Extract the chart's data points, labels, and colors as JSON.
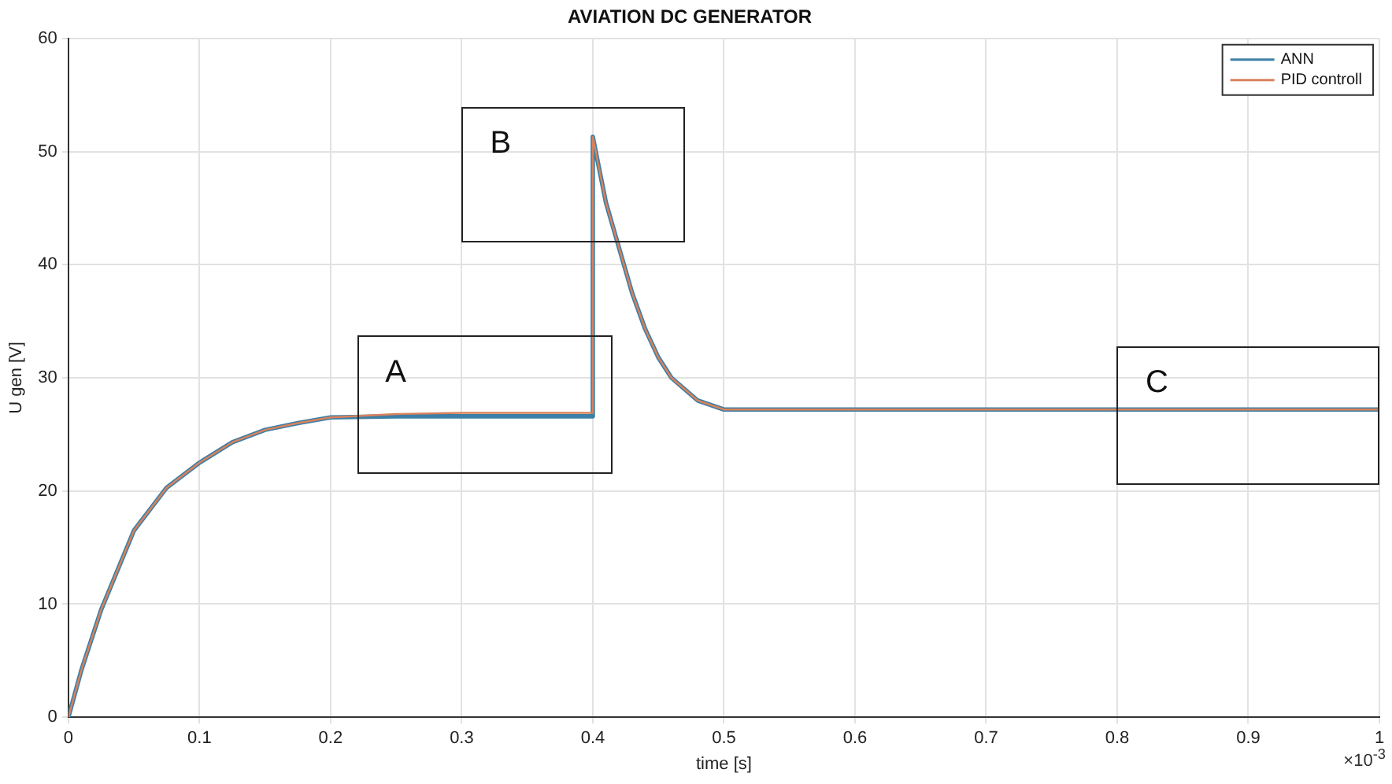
{
  "chart_data": {
    "type": "line",
    "title": "AVIATION DC GENERATOR",
    "xlabel": "time [s]",
    "ylabel": "U gen [V]",
    "xlim": [
      0,
      1
    ],
    "xticks": [
      0,
      0.1,
      0.2,
      0.3,
      0.4,
      0.5,
      0.6,
      0.7,
      0.8,
      0.9,
      1
    ],
    "ylim": [
      0,
      60
    ],
    "yticks": [
      0,
      10,
      20,
      30,
      40,
      50,
      60
    ],
    "x": [
      0,
      0.01,
      0.025,
      0.05,
      0.075,
      0.1,
      0.125,
      0.15,
      0.175,
      0.2,
      0.25,
      0.3,
      0.35,
      0.4,
      0.4,
      0.41,
      0.42,
      0.43,
      0.44,
      0.45,
      0.46,
      0.48,
      0.5,
      0.6,
      0.8,
      1
    ],
    "series": [
      {
        "name": "ANN",
        "color": "#3d7fa6",
        "values": [
          0,
          4.2,
          9.5,
          16.5,
          20.3,
          22.5,
          24.3,
          25.4,
          26,
          26.5,
          26.6,
          26.6,
          26.6,
          26.6,
          51.3,
          45.5,
          41.5,
          37.5,
          34.3,
          31.8,
          30,
          28,
          27.2,
          27.2,
          27.2,
          27.2
        ]
      },
      {
        "name": "PID controll",
        "color": "#d9825b",
        "values": [
          0,
          4.2,
          9.5,
          16.5,
          20.3,
          22.5,
          24.3,
          25.4,
          26,
          26.5,
          26.8,
          26.9,
          26.9,
          26.9,
          51.3,
          45.5,
          41.5,
          37.5,
          34.3,
          31.8,
          30,
          28,
          27.2,
          27.2,
          27.2,
          27.2
        ]
      }
    ],
    "annotations": [
      "A",
      "B",
      "C",
      "×10$^{-3}$"
    ],
    "grid": true,
    "legend": "top right",
    "marker": "none",
    "line_style": "solid"
  }
}
